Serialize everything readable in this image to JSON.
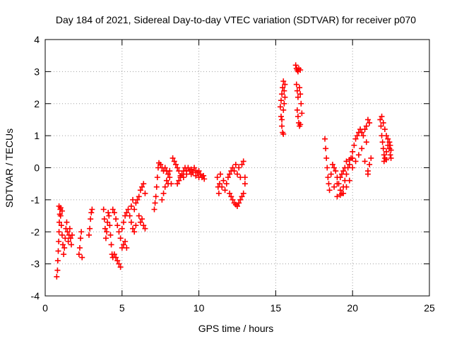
{
  "colors": {
    "series": "#ff0000",
    "grid": "#a0a0a0",
    "axis": "#000000",
    "background": "#ffffff"
  },
  "chart_data": {
    "type": "scatter",
    "title": "Day 184 of 2021, Sidereal Day-to-day VTEC variation (SDTVAR) for receiver p070",
    "xlabel": "GPS time / hours",
    "ylabel": "SDTVAR / TECUs",
    "xlim": [
      0,
      25
    ],
    "ylim": [
      -4,
      4
    ],
    "xticks": [
      0,
      5,
      10,
      15,
      20,
      25
    ],
    "yticks": [
      -4,
      -3,
      -2,
      -1,
      0,
      1,
      2,
      3,
      4
    ],
    "grid": true,
    "marker": "plus",
    "series": [
      {
        "name": "SDTVAR",
        "points": [
          [
            0.75,
            -3.4
          ],
          [
            0.8,
            -3.2
          ],
          [
            0.82,
            -2.9
          ],
          [
            0.85,
            -2.6
          ],
          [
            0.88,
            -2.3
          ],
          [
            0.9,
            -2.0
          ],
          [
            0.92,
            -1.7
          ],
          [
            0.95,
            -1.45
          ],
          [
            0.98,
            -1.3
          ],
          [
            1.0,
            -1.5
          ],
          [
            1.05,
            -1.8
          ],
          [
            1.1,
            -2.1
          ],
          [
            1.15,
            -2.4
          ],
          [
            1.2,
            -2.7
          ],
          [
            1.25,
            -2.5
          ],
          [
            1.3,
            -2.2
          ],
          [
            1.35,
            -1.9
          ],
          [
            1.4,
            -1.7
          ],
          [
            1.45,
            -2.0
          ],
          [
            1.5,
            -2.3
          ],
          [
            1.55,
            -2.1
          ],
          [
            1.6,
            -1.9
          ],
          [
            1.65,
            -2.2
          ],
          [
            1.7,
            -2.4
          ],
          [
            1.75,
            -2.1
          ],
          [
            0.9,
            -1.2
          ],
          [
            1.0,
            -1.25
          ],
          [
            1.1,
            -1.35
          ],
          [
            2.2,
            -2.7
          ],
          [
            2.25,
            -2.5
          ],
          [
            2.3,
            -2.2
          ],
          [
            2.35,
            -2.0
          ],
          [
            2.4,
            -2.8
          ],
          [
            2.85,
            -2.1
          ],
          [
            2.9,
            -1.9
          ],
          [
            2.95,
            -1.6
          ],
          [
            3.0,
            -1.4
          ],
          [
            3.05,
            -1.3
          ],
          [
            3.8,
            -1.3
          ],
          [
            3.85,
            -1.6
          ],
          [
            3.9,
            -1.9
          ],
          [
            3.95,
            -2.2
          ],
          [
            4.0,
            -2.0
          ],
          [
            4.05,
            -1.7
          ],
          [
            4.1,
            -1.4
          ],
          [
            4.15,
            -1.5
          ],
          [
            4.2,
            -1.8
          ],
          [
            4.25,
            -2.1
          ],
          [
            4.3,
            -2.4
          ],
          [
            4.35,
            -2.7
          ],
          [
            4.4,
            -2.8
          ],
          [
            4.5,
            -2.7
          ],
          [
            4.6,
            -2.8
          ],
          [
            4.7,
            -2.9
          ],
          [
            4.8,
            -3.0
          ],
          [
            4.9,
            -3.1
          ],
          [
            4.4,
            -1.3
          ],
          [
            4.5,
            -1.4
          ],
          [
            4.6,
            -1.6
          ],
          [
            4.7,
            -1.8
          ],
          [
            4.8,
            -2.0
          ],
          [
            4.9,
            -2.2
          ],
          [
            5.0,
            -2.5
          ],
          [
            5.1,
            -2.4
          ],
          [
            5.2,
            -2.3
          ],
          [
            5.3,
            -2.5
          ],
          [
            5.0,
            -1.9
          ],
          [
            5.1,
            -1.7
          ],
          [
            5.2,
            -1.5
          ],
          [
            5.3,
            -1.4
          ],
          [
            5.4,
            -1.3
          ],
          [
            5.5,
            -1.5
          ],
          [
            5.6,
            -1.7
          ],
          [
            5.7,
            -1.9
          ],
          [
            5.8,
            -2.0
          ],
          [
            5.9,
            -1.8
          ],
          [
            5.6,
            -1.2
          ],
          [
            5.7,
            -1.0
          ],
          [
            5.8,
            -1.3
          ],
          [
            5.9,
            -1.1
          ],
          [
            6.0,
            -1.0
          ],
          [
            6.1,
            -0.9
          ],
          [
            6.2,
            -0.7
          ],
          [
            6.3,
            -0.6
          ],
          [
            6.4,
            -0.5
          ],
          [
            6.1,
            -1.5
          ],
          [
            6.2,
            -1.7
          ],
          [
            6.3,
            -1.6
          ],
          [
            6.4,
            -1.8
          ],
          [
            6.5,
            -1.9
          ],
          [
            6.5,
            -0.8
          ],
          [
            7.1,
            -1.3
          ],
          [
            7.15,
            -1.1
          ],
          [
            7.2,
            -0.9
          ],
          [
            7.25,
            -0.6
          ],
          [
            7.3,
            -0.3
          ],
          [
            7.35,
            0.0
          ],
          [
            7.4,
            0.15
          ],
          [
            7.5,
            0.1
          ],
          [
            7.6,
            0.0
          ],
          [
            7.7,
            -0.1
          ],
          [
            7.8,
            0.0
          ],
          [
            7.9,
            -0.1
          ],
          [
            8.0,
            -0.2
          ],
          [
            8.1,
            -0.1
          ],
          [
            7.6,
            -1.0
          ],
          [
            7.7,
            -0.8
          ],
          [
            7.8,
            -0.6
          ],
          [
            7.9,
            -0.4
          ],
          [
            8.0,
            -0.5
          ],
          [
            8.1,
            -0.3
          ],
          [
            8.2,
            -0.5
          ],
          [
            8.3,
            0.3
          ],
          [
            8.4,
            0.2
          ],
          [
            8.5,
            0.1
          ],
          [
            8.6,
            0.0
          ],
          [
            8.7,
            -0.1
          ],
          [
            8.8,
            -0.3
          ],
          [
            8.9,
            -0.2
          ],
          [
            9.0,
            -0.1
          ],
          [
            9.1,
            0.0
          ],
          [
            9.2,
            -0.1
          ],
          [
            9.3,
            0.0
          ],
          [
            9.4,
            -0.1
          ],
          [
            9.5,
            -0.05
          ],
          [
            9.6,
            -0.15
          ],
          [
            9.7,
            0.0
          ],
          [
            9.8,
            -0.1
          ],
          [
            9.9,
            -0.15
          ],
          [
            10.0,
            -0.1
          ],
          [
            10.1,
            -0.2
          ],
          [
            10.2,
            -0.3
          ],
          [
            10.3,
            -0.25
          ],
          [
            10.35,
            -0.35
          ],
          [
            8.6,
            -0.5
          ],
          [
            8.7,
            -0.4
          ],
          [
            8.8,
            -0.25
          ],
          [
            9.0,
            -0.3
          ],
          [
            9.2,
            -0.2
          ],
          [
            9.5,
            -0.2
          ],
          [
            9.8,
            -0.25
          ],
          [
            10.0,
            -0.3
          ],
          [
            11.2,
            -0.3
          ],
          [
            11.25,
            -0.6
          ],
          [
            11.3,
            -0.8
          ],
          [
            11.35,
            -0.5
          ],
          [
            11.4,
            -0.2
          ],
          [
            11.5,
            -0.6
          ],
          [
            11.6,
            -0.4
          ],
          [
            11.7,
            -0.7
          ],
          [
            11.8,
            -0.5
          ],
          [
            11.9,
            -0.3
          ],
          [
            12.0,
            -0.2
          ],
          [
            12.1,
            -0.1
          ],
          [
            12.2,
            0.0
          ],
          [
            12.3,
            -0.1
          ],
          [
            12.4,
            0.1
          ],
          [
            12.5,
            -0.2
          ],
          [
            12.6,
            0.0
          ],
          [
            12.7,
            -0.3
          ],
          [
            12.8,
            0.1
          ],
          [
            12.9,
            0.2
          ],
          [
            12.0,
            -0.8
          ],
          [
            12.1,
            -0.9
          ],
          [
            12.2,
            -1.0
          ],
          [
            12.3,
            -1.1
          ],
          [
            12.4,
            -1.15
          ],
          [
            12.5,
            -1.2
          ],
          [
            12.6,
            -1.1
          ],
          [
            12.7,
            -1.0
          ],
          [
            12.8,
            -0.9
          ],
          [
            12.9,
            -0.8
          ],
          [
            13.0,
            -0.5
          ],
          [
            13.0,
            -0.3
          ],
          [
            15.3,
            1.9
          ],
          [
            15.35,
            2.1
          ],
          [
            15.4,
            2.3
          ],
          [
            15.45,
            2.5
          ],
          [
            15.5,
            2.7
          ],
          [
            15.55,
            2.4
          ],
          [
            15.35,
            1.6
          ],
          [
            15.4,
            1.3
          ],
          [
            15.45,
            1.1
          ],
          [
            15.5,
            1.8
          ],
          [
            15.55,
            2.0
          ],
          [
            15.6,
            2.2
          ],
          [
            15.4,
            1.5
          ],
          [
            15.5,
            1.05
          ],
          [
            15.6,
            2.6
          ],
          [
            16.3,
            3.2
          ],
          [
            16.35,
            3.1
          ],
          [
            16.4,
            3.05
          ],
          [
            16.45,
            3.0
          ],
          [
            16.5,
            3.1
          ],
          [
            16.55,
            2.5
          ],
          [
            16.6,
            2.3
          ],
          [
            16.65,
            2.0
          ],
          [
            16.7,
            1.7
          ],
          [
            16.35,
            2.6
          ],
          [
            16.4,
            2.4
          ],
          [
            16.45,
            2.2
          ],
          [
            16.5,
            1.4
          ],
          [
            16.55,
            1.3
          ],
          [
            16.6,
            1.35
          ],
          [
            16.45,
            1.6
          ],
          [
            16.6,
            3.05
          ],
          [
            16.4,
            1.8
          ],
          [
            18.2,
            0.9
          ],
          [
            18.25,
            0.6
          ],
          [
            18.3,
            0.3
          ],
          [
            18.35,
            0.0
          ],
          [
            18.4,
            -0.3
          ],
          [
            18.45,
            -0.5
          ],
          [
            18.5,
            -0.7
          ],
          [
            18.6,
            -0.2
          ],
          [
            18.7,
            0.1
          ],
          [
            18.8,
            0.0
          ],
          [
            18.9,
            -0.1
          ],
          [
            19.0,
            -0.3
          ],
          [
            19.1,
            -0.5
          ],
          [
            19.2,
            -0.7
          ],
          [
            19.3,
            -0.8
          ],
          [
            19.4,
            -0.6
          ],
          [
            19.5,
            -0.4
          ],
          [
            19.6,
            -0.2
          ],
          [
            19.7,
            0.0
          ],
          [
            19.8,
            0.1
          ],
          [
            19.9,
            0.3
          ],
          [
            20.0,
            0.5
          ],
          [
            20.1,
            0.7
          ],
          [
            20.2,
            0.9
          ],
          [
            20.3,
            1.0
          ],
          [
            20.4,
            1.1
          ],
          [
            20.5,
            1.2
          ],
          [
            20.6,
            1.1
          ],
          [
            20.7,
            1.0
          ],
          [
            20.8,
            1.2
          ],
          [
            20.9,
            1.3
          ],
          [
            21.0,
            1.5
          ],
          [
            21.1,
            1.4
          ],
          [
            20.9,
            0.8
          ],
          [
            19.0,
            -0.9
          ],
          [
            19.2,
            -0.85
          ],
          [
            19.4,
            -0.8
          ],
          [
            19.6,
            -0.6
          ],
          [
            19.8,
            -0.4
          ],
          [
            20.0,
            0.0
          ],
          [
            20.2,
            0.2
          ],
          [
            20.4,
            0.4
          ],
          [
            20.6,
            0.6
          ],
          [
            20.8,
            0.2
          ],
          [
            21.0,
            -0.1
          ],
          [
            21.1,
            0.1
          ],
          [
            21.2,
            0.3
          ],
          [
            21.0,
            -0.2
          ],
          [
            18.8,
            -0.6
          ],
          [
            19.0,
            -0.5
          ],
          [
            19.2,
            -0.3
          ],
          [
            19.4,
            -0.1
          ],
          [
            19.6,
            0.2
          ],
          [
            19.8,
            0.25
          ],
          [
            20.0,
            0.3
          ],
          [
            19.3,
            -0.2
          ],
          [
            19.5,
            0.0
          ],
          [
            21.8,
            1.5
          ],
          [
            21.85,
            1.3
          ],
          [
            21.9,
            1.0
          ],
          [
            21.95,
            0.8
          ],
          [
            22.0,
            0.6
          ],
          [
            22.05,
            0.4
          ],
          [
            22.1,
            0.3
          ],
          [
            22.2,
            0.5
          ],
          [
            22.3,
            0.7
          ],
          [
            22.4,
            0.6
          ],
          [
            22.45,
            0.4
          ],
          [
            22.5,
            0.3
          ],
          [
            21.9,
            1.6
          ],
          [
            22.0,
            1.4
          ],
          [
            22.1,
            1.2
          ],
          [
            22.2,
            1.0
          ],
          [
            22.3,
            0.9
          ],
          [
            22.4,
            0.8
          ],
          [
            22.45,
            0.7
          ],
          [
            22.5,
            0.55
          ],
          [
            22.05,
            0.2
          ],
          [
            22.2,
            0.25
          ]
        ]
      }
    ]
  }
}
